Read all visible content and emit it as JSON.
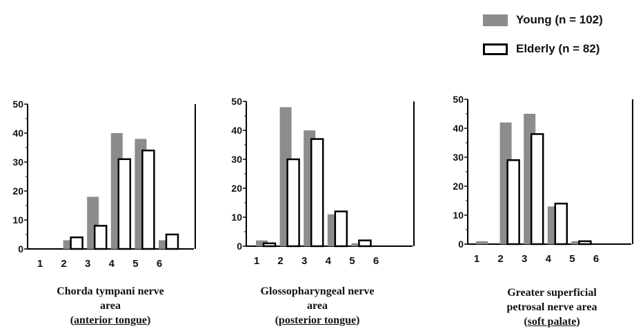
{
  "legend": {
    "young_label": "Young (n = 102)",
    "elderly_label": "Elderly (n = 82)"
  },
  "colors": {
    "young": "#8c8c8c",
    "elderly": "#ffffff",
    "axis": "#000000"
  },
  "chart_data": [
    {
      "type": "bar",
      "categories": [
        "1",
        "2",
        "3",
        "4",
        "5",
        "6"
      ],
      "series": [
        {
          "name": "Young (n = 102)",
          "values": [
            0,
            3,
            18,
            40,
            38,
            3
          ]
        },
        {
          "name": "Elderly (n = 82)",
          "values": [
            0,
            4,
            8,
            31,
            34,
            5
          ]
        }
      ],
      "ylim": [
        0,
        50
      ],
      "yticks": [
        "0",
        "10",
        "20",
        "30",
        "40",
        "50"
      ],
      "caption": {
        "line1": "Chorda tympani nerve",
        "line2": "area",
        "pre": "(",
        "underlined": "anterior tongue",
        "post": ")"
      }
    },
    {
      "type": "bar",
      "categories": [
        "1",
        "2",
        "3",
        "4",
        "5",
        "6"
      ],
      "series": [
        {
          "name": "Young (n = 102)",
          "values": [
            2,
            48,
            40,
            11,
            1,
            0
          ]
        },
        {
          "name": "Elderly (n = 82)",
          "values": [
            1,
            30,
            37,
            12,
            2,
            0
          ]
        }
      ],
      "ylim": [
        0,
        50
      ],
      "yticks": [
        "0",
        "10",
        "20",
        "30",
        "40",
        "50"
      ],
      "caption": {
        "line1": "Glossopharyngeal nerve",
        "line2": "area",
        "pre": "(",
        "underlined": "posterior tongue",
        "post": ")"
      }
    },
    {
      "type": "bar",
      "categories": [
        "1",
        "2",
        "3",
        "4",
        "5",
        "6"
      ],
      "series": [
        {
          "name": "Young (n = 102)",
          "values": [
            1,
            42,
            45,
            13,
            1,
            0
          ]
        },
        {
          "name": "Elderly (n = 82)",
          "values": [
            0,
            29,
            38,
            14,
            1,
            0
          ]
        }
      ],
      "ylim": [
        0,
        50
      ],
      "yticks": [
        "0",
        "10",
        "20",
        "30",
        "40",
        "50"
      ],
      "caption": {
        "line1": "Greater superficial",
        "line2": "petrosal nerve area",
        "pre": "(",
        "underlined": "soft palate",
        "post": ")"
      }
    }
  ]
}
